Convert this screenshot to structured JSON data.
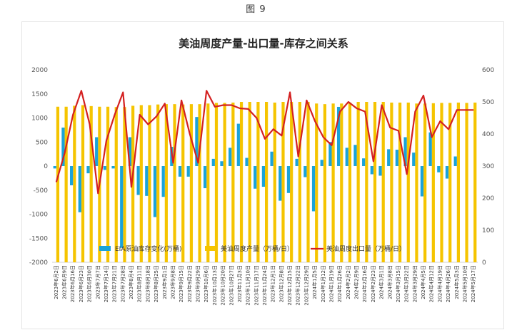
{
  "figure_caption": "图 9",
  "chart_data": {
    "type": "bar+line",
    "title": "美油周度产量-出口量-库存之间关系",
    "legend": {
      "placement": "bottom"
    },
    "grid": false,
    "y_left": {
      "min": -2000,
      "max": 2000,
      "ticks": [
        2000,
        1500,
        1000,
        500,
        0,
        -500,
        -1000,
        -1500,
        -2000
      ]
    },
    "y_right": {
      "min": 0,
      "max": 600,
      "ticks": [
        600,
        500,
        400,
        300,
        200,
        100,
        0
      ]
    },
    "categories": [
      "2023年6月2日",
      "2023年6月9日",
      "2023年6月16日",
      "2023年6月23日",
      "2023年6月30日",
      "2023年7月7日",
      "2023年7月14日",
      "2023年7月21日",
      "2023年7月28日",
      "2023年8月4日",
      "2023年8月11日",
      "2023年8月18日",
      "2023年8月25日",
      "2023年9月1日",
      "2023年9月8日",
      "2023年9月15日",
      "2023年9月22日",
      "2023年9月29日",
      "2023年10月6日",
      "2023年10月13日",
      "2023年10月20日",
      "2023年10月27日",
      "2023年11月3日",
      "2023年11月10日",
      "2023年11月17日",
      "2023年11月24日",
      "2023年12月1日",
      "2023年12月8日",
      "2023年12月15日",
      "2023年12月22日",
      "2023年12月29日",
      "2024年1月5日",
      "2024年1月12日",
      "2024年1月19日",
      "2024年1月26日",
      "2024年2月2日",
      "2024年2月9日",
      "2024年2月16日",
      "2024年2月23日",
      "2024年3月1日",
      "2024年3月8日",
      "2024年3月15日",
      "2024年3月22日",
      "2024年3月29日",
      "2024年4月5日",
      "2024年4月12日",
      "2024年4月19日",
      "2024年4月26日",
      "2024年5月3日",
      "2024年5月10日",
      "2024年5月17日"
    ],
    "series": [
      {
        "name": "EIA原油库存变化(万桶)",
        "type": "bar",
        "axis": "left",
        "color": "#1aa3d9",
        "values": [
          -50,
          800,
          -400,
          -960,
          -150,
          600,
          -80,
          -50,
          -1700,
          600,
          -600,
          -620,
          -1060,
          -640,
          400,
          -220,
          -220,
          1020,
          -460,
          150,
          100,
          380,
          880,
          170,
          -470,
          -430,
          300,
          -720,
          -560,
          150,
          -230,
          -940,
          130,
          500,
          1230,
          380,
          440,
          160,
          -170,
          -200,
          350,
          340,
          600,
          280,
          -630,
          700,
          -130,
          -260,
          200,
          0,
          0
        ]
      },
      {
        "name": "美油周度产量（万桶/日）",
        "type": "bar",
        "axis": "right",
        "color": "#f5c400",
        "values": [
          485,
          485,
          488,
          490,
          487,
          485,
          485,
          484,
          484,
          488,
          490,
          490,
          492,
          493,
          493,
          492,
          493,
          493,
          495,
          497,
          497,
          498,
          500,
          500,
          500,
          500,
          498,
          500,
          500,
          500,
          500,
          495,
          493,
          495,
          495,
          498,
          500,
          500,
          500,
          500,
          498,
          498,
          498,
          495,
          495,
          496,
          497,
          497,
          498,
          497,
          498
        ]
      },
      {
        "name": "美油周度出口量（万桶/日）",
        "type": "line",
        "axis": "right",
        "color": "#d42020",
        "values": [
          250,
          340,
          460,
          535,
          430,
          215,
          380,
          460,
          530,
          235,
          460,
          430,
          455,
          495,
          310,
          505,
          400,
          310,
          535,
          485,
          490,
          490,
          480,
          478,
          450,
          385,
          415,
          395,
          530,
          330,
          505,
          440,
          390,
          365,
          470,
          500,
          480,
          470,
          315,
          490,
          420,
          410,
          275,
          470,
          520,
          390,
          440,
          415,
          475,
          475,
          475
        ]
      }
    ]
  }
}
